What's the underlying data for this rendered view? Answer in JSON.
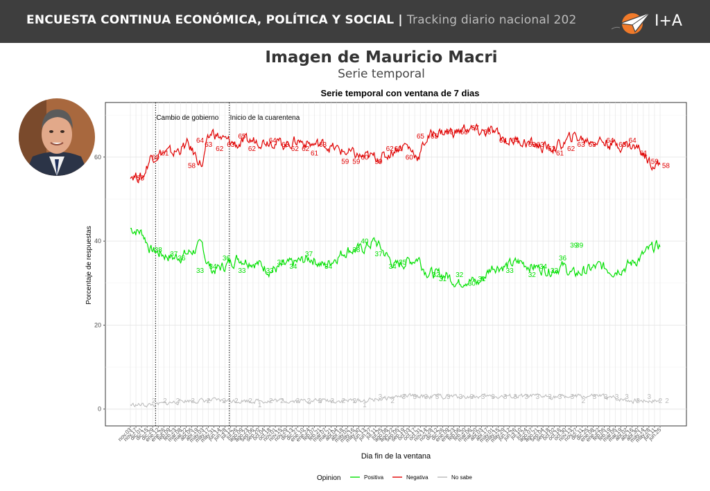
{
  "header": {
    "title": "ENCUESTA CONTINUA ECONÓMICA, POLÍTICA Y SOCIAL",
    "separator": "|",
    "subtitle": "Tracking diario nacional 202",
    "brand": "I+A"
  },
  "page": {
    "title": "Imagen de Mauricio Macri",
    "subtitle": "Serie temporal"
  },
  "colors": {
    "header_bg": "#3e3e3e",
    "positiva": "#00e000",
    "negativa": "#e00000",
    "no_sabe": "#b8b8b8",
    "logo_orange": "#f07a2a"
  },
  "chart_data": {
    "type": "line",
    "title": "Serie temporal con ventana de 7 dias",
    "xlabel": "Dia fin de la ventana",
    "ylabel": "Porcentaje de respuestas",
    "ylim": [
      -4,
      73
    ],
    "yticks": [
      0,
      20,
      40,
      60
    ],
    "grid": true,
    "legend_position": "bottom",
    "legend_title": "Opinion",
    "x_count": 590,
    "x_tick_labels": [
      "nov.03",
      "nov.17",
      "dic.01",
      "dic.15",
      "dic.29",
      "ene.12",
      "ene.26",
      "feb.09",
      "feb.23",
      "mar.08",
      "mar.22",
      "abr.05",
      "abr.19",
      "may.03",
      "may.17",
      "may.31",
      "jun.14",
      "jun.28",
      "jul.12",
      "jul.26",
      "ago.09",
      "ago.23",
      "sep.06",
      "sep.20",
      "oct.04",
      "oct.18",
      "nov.01",
      "nov.15",
      "nov.29",
      "dic.13",
      "dic.27",
      "ene.10",
      "ene.24",
      "feb.07",
      "feb.21",
      "mar.07",
      "mar.21",
      "abr.04",
      "abr.18",
      "may.02",
      "may.16",
      "may.30",
      "jun.13",
      "jun.27",
      "jul.11",
      "jul.25",
      "ago.08",
      "ago.22",
      "sep.05",
      "sep.19",
      "oct.03",
      "oct.17",
      "oct.31",
      "nov.14",
      "nov.28",
      "dic.12",
      "dic.26",
      "ene.09",
      "ene.23",
      "feb.06",
      "feb.20",
      "mar.06",
      "mar.20",
      "abr.03",
      "abr.17",
      "may.01",
      "may.15",
      "may.29",
      "jun.12",
      "jun.26",
      "jul.10",
      "jul.24",
      "ago.07",
      "ago.21",
      "sep.04",
      "sep.18",
      "oct.02",
      "oct.16",
      "oct.30",
      "nov.13",
      "nov.27",
      "dic.11",
      "dic.25",
      "ene.08",
      "ene.22",
      "feb.05",
      "feb.19",
      "mar.05",
      "mar.19",
      "abr.02",
      "abr.16",
      "abr.30",
      "may.14",
      "may.28",
      "jun.11",
      "jun.25"
    ],
    "annotations": [
      {
        "label": "Cambio de gobierno",
        "x": 28
      },
      {
        "label": "Inicio de la cuarentena",
        "x": 110
      }
    ],
    "series": [
      {
        "name": "Positiva",
        "keyframes": [
          [
            0,
            43
          ],
          [
            18,
            42
          ],
          [
            30,
            38
          ],
          [
            45,
            37
          ],
          [
            65,
            36
          ],
          [
            85,
            37
          ],
          [
            108,
            39
          ],
          [
            112,
            36
          ],
          [
            122,
            33
          ],
          [
            140,
            34
          ],
          [
            160,
            36
          ],
          [
            185,
            35
          ],
          [
            210,
            33
          ],
          [
            230,
            34
          ],
          [
            250,
            35
          ],
          [
            270,
            36
          ],
          [
            290,
            34
          ],
          [
            305,
            36
          ],
          [
            325,
            38
          ],
          [
            345,
            38
          ],
          [
            365,
            40
          ],
          [
            380,
            37
          ],
          [
            395,
            34
          ],
          [
            410,
            35
          ],
          [
            430,
            36
          ],
          [
            440,
            33
          ],
          [
            455,
            32
          ],
          [
            470,
            32
          ],
          [
            490,
            30
          ],
          [
            500,
            31
          ],
          [
            520,
            30
          ],
          [
            540,
            34
          ],
          [
            560,
            34
          ],
          [
            580,
            35
          ],
          [
            600,
            34
          ],
          [
            625,
            33
          ],
          [
            645,
            34
          ],
          [
            660,
            32
          ],
          [
            680,
            33
          ],
          [
            700,
            34
          ],
          [
            720,
            33
          ],
          [
            740,
            34
          ],
          [
            760,
            36
          ],
          [
            775,
            38
          ],
          [
            790,
            39
          ]
        ],
        "labels": [
          [
            50,
            38
          ],
          [
            78,
            37
          ],
          [
            92,
            36
          ],
          [
            125,
            33
          ],
          [
            148,
            34
          ],
          [
            172,
            36
          ],
          [
            200,
            33
          ],
          [
            250,
            33
          ],
          [
            270,
            35
          ],
          [
            292,
            34
          ],
          [
            320,
            37
          ],
          [
            355,
            34
          ],
          [
            405,
            38
          ],
          [
            420,
            40
          ],
          [
            445,
            37
          ],
          [
            470,
            34
          ],
          [
            488,
            35
          ],
          [
            548,
            32
          ],
          [
            560,
            31
          ],
          [
            590,
            32
          ],
          [
            612,
            30
          ],
          [
            630,
            31
          ],
          [
            680,
            33
          ],
          [
            720,
            32
          ],
          [
            740,
            34
          ],
          [
            760,
            33
          ],
          [
            775,
            36
          ],
          [
            795,
            39
          ],
          [
            805,
            39
          ]
        ]
      },
      {
        "name": "Negativa",
        "keyframes": [
          [
            0,
            56
          ],
          [
            18,
            55
          ],
          [
            30,
            60
          ],
          [
            45,
            61
          ],
          [
            65,
            61
          ],
          [
            85,
            63
          ],
          [
            108,
            58
          ],
          [
            112,
            62
          ],
          [
            122,
            66
          ],
          [
            140,
            64
          ],
          [
            160,
            63
          ],
          [
            185,
            64
          ],
          [
            210,
            64
          ],
          [
            230,
            63
          ],
          [
            250,
            64
          ],
          [
            270,
            63
          ],
          [
            290,
            63
          ],
          [
            305,
            62
          ],
          [
            325,
            61
          ],
          [
            345,
            60
          ],
          [
            365,
            60
          ],
          [
            380,
            60
          ],
          [
            395,
            62
          ],
          [
            410,
            63
          ],
          [
            430,
            60
          ],
          [
            440,
            64
          ],
          [
            455,
            66
          ],
          [
            470,
            66
          ],
          [
            490,
            66
          ],
          [
            500,
            67
          ],
          [
            520,
            66
          ],
          [
            540,
            66
          ],
          [
            560,
            64
          ],
          [
            580,
            64
          ],
          [
            600,
            63
          ],
          [
            625,
            62
          ],
          [
            645,
            63
          ],
          [
            660,
            65
          ],
          [
            680,
            64
          ],
          [
            700,
            64
          ],
          [
            720,
            63
          ],
          [
            740,
            63
          ],
          [
            760,
            62
          ],
          [
            775,
            59
          ],
          [
            790,
            58
          ]
        ],
        "labels": [
          [
            18,
            55
          ],
          [
            45,
            60
          ],
          [
            62,
            61
          ],
          [
            110,
            58
          ],
          [
            125,
            64
          ],
          [
            140,
            63
          ],
          [
            160,
            62
          ],
          [
            180,
            63
          ],
          [
            200,
            65
          ],
          [
            218,
            62
          ],
          [
            255,
            64
          ],
          [
            278,
            63
          ],
          [
            295,
            62
          ],
          [
            314,
            62
          ],
          [
            330,
            61
          ],
          [
            345,
            63
          ],
          [
            385,
            59
          ],
          [
            405,
            59
          ],
          [
            420,
            60
          ],
          [
            445,
            59
          ],
          [
            465,
            62
          ],
          [
            480,
            62
          ],
          [
            500,
            60
          ],
          [
            520,
            65
          ],
          [
            545,
            65
          ],
          [
            572,
            66
          ],
          [
            598,
            66
          ],
          [
            618,
            67
          ],
          [
            640,
            66
          ],
          [
            668,
            64
          ],
          [
            690,
            64
          ],
          [
            720,
            63
          ],
          [
            735,
            63
          ],
          [
            755,
            62
          ],
          [
            770,
            61
          ],
          [
            790,
            62
          ],
          [
            808,
            63
          ],
          [
            828,
            63
          ],
          [
            860,
            64
          ],
          [
            882,
            63
          ],
          [
            900,
            64
          ],
          [
            920,
            61
          ],
          [
            940,
            59
          ],
          [
            960,
            58
          ]
        ]
      },
      {
        "name": "No sabe",
        "keyframes": [
          [
            0,
            1
          ],
          [
            40,
            1
          ],
          [
            80,
            2
          ],
          [
            110,
            2
          ],
          [
            150,
            2
          ],
          [
            200,
            2
          ],
          [
            250,
            2
          ],
          [
            300,
            2
          ],
          [
            350,
            2
          ],
          [
            400,
            3
          ],
          [
            450,
            3
          ],
          [
            500,
            3
          ],
          [
            550,
            3
          ],
          [
            600,
            3
          ],
          [
            650,
            3
          ],
          [
            700,
            3
          ],
          [
            750,
            2
          ],
          [
            790,
            2
          ]
        ],
        "labels": [
          [
            42,
            2
          ],
          [
            62,
            2
          ],
          [
            85,
            2
          ],
          [
            112,
            2
          ],
          [
            140,
            2
          ],
          [
            168,
            2
          ],
          [
            190,
            2
          ],
          [
            215,
            2
          ],
          [
            232,
            1
          ],
          [
            252,
            2
          ],
          [
            272,
            2
          ],
          [
            300,
            2
          ],
          [
            320,
            2
          ],
          [
            340,
            2
          ],
          [
            362,
            2
          ],
          [
            382,
            2
          ],
          [
            402,
            2
          ],
          [
            420,
            1
          ],
          [
            448,
            3
          ],
          [
            470,
            2
          ],
          [
            490,
            3
          ],
          [
            510,
            3
          ],
          [
            530,
            3
          ],
          [
            550,
            3
          ],
          [
            570,
            3
          ],
          [
            592,
            3
          ],
          [
            612,
            3
          ],
          [
            632,
            3
          ],
          [
            650,
            3
          ],
          [
            672,
            3
          ],
          [
            690,
            3
          ],
          [
            710,
            3
          ],
          [
            730,
            3
          ],
          [
            752,
            3
          ],
          [
            770,
            3
          ],
          [
            792,
            3
          ],
          [
            812,
            2
          ],
          [
            832,
            3
          ],
          [
            852,
            3
          ],
          [
            872,
            3
          ],
          [
            890,
            3
          ],
          [
            910,
            2
          ],
          [
            930,
            3
          ],
          [
            950,
            2
          ],
          [
            962,
            2
          ]
        ]
      }
    ]
  }
}
